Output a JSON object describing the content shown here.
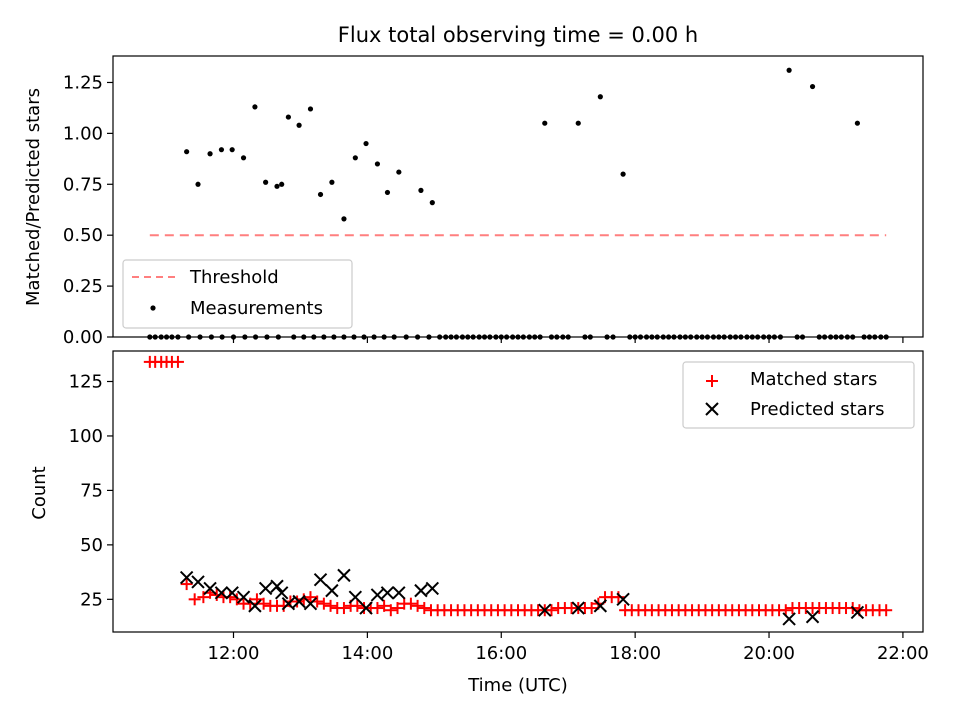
{
  "chart_data": [
    {
      "type": "scatter",
      "title": "Flux total observing time = 0.00 h",
      "ylabel": "Matched/Predicted stars",
      "ylim": [
        0,
        1.38
      ],
      "yticks": [
        0,
        0.25,
        0.5,
        0.75,
        1.0,
        1.25
      ],
      "ytick_labels": [
        "0.00",
        "0.25",
        "0.50",
        "0.75",
        "1.00",
        "1.25"
      ],
      "legend": {
        "placement": "lower-left",
        "entries": [
          "Threshold",
          "Measurements"
        ]
      },
      "threshold": {
        "name": "Threshold",
        "value": 0.5,
        "x_start": 10.75,
        "x_end": 21.75,
        "color": "#ff7f7f",
        "style": "dashed"
      },
      "series": [
        {
          "name": "Measurements",
          "color": "#000000",
          "points": [
            [
              11.3,
              0.91
            ],
            [
              11.47,
              0.75
            ],
            [
              11.65,
              0.9
            ],
            [
              11.82,
              0.92
            ],
            [
              11.98,
              0.92
            ],
            [
              12.15,
              0.88
            ],
            [
              12.32,
              1.13
            ],
            [
              12.48,
              0.76
            ],
            [
              12.65,
              0.74
            ],
            [
              12.72,
              0.75
            ],
            [
              12.82,
              1.08
            ],
            [
              12.98,
              1.04
            ],
            [
              13.15,
              1.12
            ],
            [
              13.3,
              0.7
            ],
            [
              13.47,
              0.76
            ],
            [
              13.65,
              0.58
            ],
            [
              13.82,
              0.88
            ],
            [
              13.98,
              0.95
            ],
            [
              14.15,
              0.85
            ],
            [
              14.3,
              0.71
            ],
            [
              14.47,
              0.81
            ],
            [
              14.8,
              0.72
            ],
            [
              14.97,
              0.66
            ],
            [
              16.65,
              1.05
            ],
            [
              17.15,
              1.05
            ],
            [
              17.48,
              1.18
            ],
            [
              17.82,
              0.8
            ],
            [
              20.3,
              1.31
            ],
            [
              20.65,
              1.23
            ],
            [
              21.32,
              1.05
            ]
          ],
          "zero_value_times": [
            10.75,
            10.83,
            10.92,
            11.0,
            11.08,
            11.17,
            11.33,
            11.5,
            11.67,
            11.83,
            12.0,
            12.17,
            12.33,
            12.5,
            12.67,
            12.9,
            13.05,
            13.2,
            13.35,
            13.5,
            13.65,
            13.8,
            13.95,
            14.1,
            14.25,
            14.4,
            14.58,
            14.75,
            14.92,
            15.08,
            15.17,
            15.25,
            15.33,
            15.42,
            15.5,
            15.58,
            15.67,
            15.75,
            15.83,
            15.92,
            16.0,
            16.08,
            16.17,
            16.25,
            16.33,
            16.42,
            16.5,
            16.58,
            16.75,
            16.83,
            16.92,
            17.0,
            17.25,
            17.33,
            17.58,
            17.67,
            17.92,
            18.0,
            18.08,
            18.17,
            18.25,
            18.33,
            18.42,
            18.5,
            18.58,
            18.67,
            18.75,
            18.83,
            18.92,
            19.0,
            19.08,
            19.17,
            19.25,
            19.33,
            19.42,
            19.5,
            19.58,
            19.67,
            19.75,
            19.83,
            19.92,
            20.0,
            20.08,
            20.17,
            20.42,
            20.5,
            20.75,
            20.83,
            20.92,
            21.0,
            21.08,
            21.17,
            21.25,
            21.42,
            21.5,
            21.58,
            21.67,
            21.75
          ]
        }
      ]
    },
    {
      "type": "scatter",
      "title": "",
      "xlabel": "Time (UTC)",
      "ylabel": "Count",
      "xlim": [
        10.2,
        22.3
      ],
      "ylim": [
        10,
        139
      ],
      "xticks": [
        12,
        14,
        16,
        18,
        20,
        22
      ],
      "xtick_labels": [
        "12:00",
        "14:00",
        "16:00",
        "18:00",
        "20:00",
        "22:00"
      ],
      "yticks": [
        25,
        50,
        75,
        100,
        125
      ],
      "ytick_labels": [
        "25",
        "50",
        "75",
        "100",
        "125"
      ],
      "legend": {
        "placement": "upper-right",
        "entries": [
          "Matched stars",
          "Predicted stars"
        ]
      },
      "series": [
        {
          "name": "Matched stars",
          "marker": "+",
          "color": "#ff0000",
          "points": [
            [
              10.75,
              134
            ],
            [
              10.83,
              134
            ],
            [
              10.92,
              134
            ],
            [
              11.0,
              134
            ],
            [
              11.08,
              134
            ],
            [
              11.17,
              134
            ],
            [
              11.3,
              32
            ],
            [
              11.42,
              25
            ],
            [
              11.55,
              26
            ],
            [
              11.65,
              28
            ],
            [
              11.75,
              27
            ],
            [
              11.85,
              26
            ],
            [
              11.95,
              26
            ],
            [
              12.05,
              25
            ],
            [
              12.15,
              23
            ],
            [
              12.25,
              23
            ],
            [
              12.35,
              25
            ],
            [
              12.45,
              23
            ],
            [
              12.55,
              22
            ],
            [
              12.65,
              22
            ],
            [
              12.75,
              22
            ],
            [
              12.85,
              24
            ],
            [
              12.95,
              24
            ],
            [
              13.05,
              25
            ],
            [
              13.15,
              26
            ],
            [
              13.25,
              24
            ],
            [
              13.35,
              23
            ],
            [
              13.45,
              22
            ],
            [
              13.55,
              21
            ],
            [
              13.65,
              21
            ],
            [
              13.75,
              22
            ],
            [
              13.85,
              22
            ],
            [
              13.95,
              21
            ],
            [
              14.05,
              21
            ],
            [
              14.15,
              21
            ],
            [
              14.25,
              22
            ],
            [
              14.35,
              20
            ],
            [
              14.45,
              21
            ],
            [
              14.55,
              23
            ],
            [
              14.65,
              23
            ],
            [
              14.75,
              22
            ],
            [
              14.85,
              21
            ],
            [
              14.95,
              20
            ],
            [
              15.05,
              20
            ],
            [
              15.15,
              20
            ],
            [
              15.25,
              20
            ],
            [
              15.35,
              20
            ],
            [
              15.45,
              20
            ],
            [
              15.55,
              20
            ],
            [
              15.65,
              20
            ],
            [
              15.75,
              20
            ],
            [
              15.85,
              20
            ],
            [
              15.95,
              20
            ],
            [
              16.05,
              20
            ],
            [
              16.15,
              20
            ],
            [
              16.25,
              20
            ],
            [
              16.35,
              20
            ],
            [
              16.45,
              20
            ],
            [
              16.55,
              20
            ],
            [
              16.65,
              20
            ],
            [
              16.75,
              20
            ],
            [
              16.85,
              21
            ],
            [
              16.95,
              21
            ],
            [
              17.05,
              21
            ],
            [
              17.15,
              21
            ],
            [
              17.25,
              21
            ],
            [
              17.35,
              21
            ],
            [
              17.45,
              23
            ],
            [
              17.55,
              26
            ],
            [
              17.65,
              26
            ],
            [
              17.75,
              26
            ],
            [
              17.85,
              20
            ],
            [
              17.95,
              20
            ],
            [
              18.05,
              20
            ],
            [
              18.15,
              20
            ],
            [
              18.25,
              20
            ],
            [
              18.35,
              20
            ],
            [
              18.45,
              20
            ],
            [
              18.55,
              20
            ],
            [
              18.65,
              20
            ],
            [
              18.75,
              20
            ],
            [
              18.85,
              20
            ],
            [
              18.95,
              20
            ],
            [
              19.05,
              20
            ],
            [
              19.15,
              20
            ],
            [
              19.25,
              20
            ],
            [
              19.35,
              20
            ],
            [
              19.45,
              20
            ],
            [
              19.55,
              20
            ],
            [
              19.65,
              20
            ],
            [
              19.75,
              20
            ],
            [
              19.85,
              20
            ],
            [
              19.95,
              20
            ],
            [
              20.05,
              20
            ],
            [
              20.15,
              20
            ],
            [
              20.25,
              20
            ],
            [
              20.35,
              21
            ],
            [
              20.45,
              21
            ],
            [
              20.55,
              21
            ],
            [
              20.65,
              21
            ],
            [
              20.75,
              21
            ],
            [
              20.85,
              21
            ],
            [
              20.95,
              21
            ],
            [
              21.05,
              21
            ],
            [
              21.15,
              21
            ],
            [
              21.25,
              21
            ],
            [
              21.35,
              20
            ],
            [
              21.45,
              20
            ],
            [
              21.55,
              20
            ],
            [
              21.65,
              20
            ],
            [
              21.75,
              20
            ]
          ]
        },
        {
          "name": "Predicted stars",
          "marker": "x",
          "color": "#000000",
          "points": [
            [
              11.3,
              35
            ],
            [
              11.47,
              33
            ],
            [
              11.65,
              30
            ],
            [
              11.82,
              28
            ],
            [
              11.98,
              28
            ],
            [
              12.15,
              26
            ],
            [
              12.32,
              22
            ],
            [
              12.48,
              30
            ],
            [
              12.65,
              31
            ],
            [
              12.72,
              28
            ],
            [
              12.82,
              23
            ],
            [
              12.98,
              24
            ],
            [
              13.15,
              23
            ],
            [
              13.3,
              34
            ],
            [
              13.47,
              29
            ],
            [
              13.65,
              36
            ],
            [
              13.82,
              26
            ],
            [
              13.98,
              21
            ],
            [
              14.15,
              27
            ],
            [
              14.3,
              28
            ],
            [
              14.47,
              28
            ],
            [
              14.8,
              29
            ],
            [
              14.97,
              30
            ],
            [
              16.65,
              20
            ],
            [
              17.15,
              21
            ],
            [
              17.48,
              22
            ],
            [
              17.82,
              25
            ],
            [
              20.3,
              16
            ],
            [
              20.65,
              17
            ],
            [
              21.32,
              19
            ]
          ]
        }
      ]
    }
  ]
}
